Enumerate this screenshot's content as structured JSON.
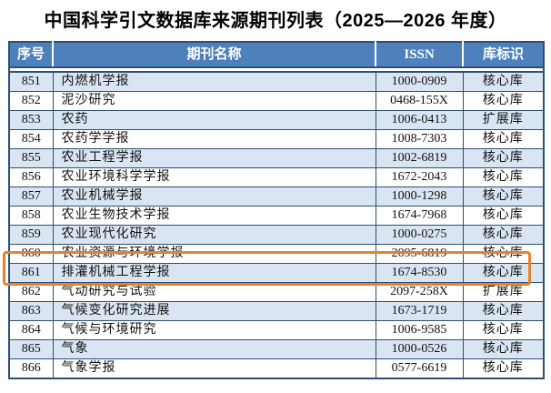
{
  "title": "中国科学引文数据库来源期刊列表（2025—2026 年度）",
  "table": {
    "columns": [
      "序号",
      "期刊名称",
      "ISSN",
      "库标识"
    ],
    "rows": [
      {
        "no": "851",
        "name": "内燃机学报",
        "issn": "1000-0909",
        "tag": "核心库"
      },
      {
        "no": "852",
        "name": "泥沙研究",
        "issn": "0468-155X",
        "tag": "核心库"
      },
      {
        "no": "853",
        "name": "农药",
        "issn": "1006-0413",
        "tag": "扩展库"
      },
      {
        "no": "854",
        "name": "农药学学报",
        "issn": "1008-7303",
        "tag": "核心库"
      },
      {
        "no": "855",
        "name": "农业工程学报",
        "issn": "1002-6819",
        "tag": "核心库"
      },
      {
        "no": "856",
        "name": "农业环境科学学报",
        "issn": "1672-2043",
        "tag": "核心库"
      },
      {
        "no": "857",
        "name": "农业机械学报",
        "issn": "1000-1298",
        "tag": "核心库"
      },
      {
        "no": "858",
        "name": "农业生物技术学报",
        "issn": "1674-7968",
        "tag": "核心库"
      },
      {
        "no": "859",
        "name": "农业现代化研究",
        "issn": "1000-0275",
        "tag": "核心库"
      },
      {
        "no": "860",
        "name": "农业资源与环境学报",
        "issn": "2095-6819",
        "tag": "核心库"
      },
      {
        "no": "861",
        "name": "排灌机械工程学报",
        "issn": "1674-8530",
        "tag": "核心库"
      },
      {
        "no": "862",
        "name": "气动研究与试验",
        "issn": "2097-258X",
        "tag": "扩展库"
      },
      {
        "no": "863",
        "name": "气候变化研究进展",
        "issn": "1673-1719",
        "tag": "核心库"
      },
      {
        "no": "864",
        "name": "气候与环境研究",
        "issn": "1006-9585",
        "tag": "核心库"
      },
      {
        "no": "865",
        "name": "气象",
        "issn": "1000-0526",
        "tag": "核心库"
      },
      {
        "no": "866",
        "name": "气象学报",
        "issn": "0577-6619",
        "tag": "核心库"
      }
    ]
  },
  "highlight": {
    "row_no": "861"
  },
  "colors": {
    "header_bg": "#4d80bc",
    "row_alt_bg": "#d9e5f2",
    "border": "#2f4f72",
    "highlight": "#e8802d"
  }
}
